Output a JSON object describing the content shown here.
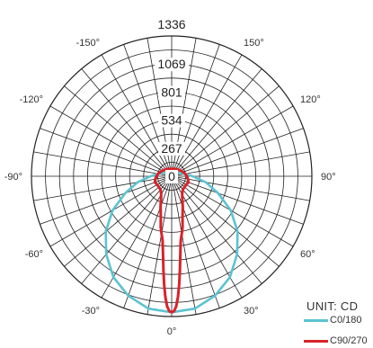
{
  "chart_data": {
    "type": "polar",
    "unit_label": "UNIT: CD",
    "radial_ticks": [
      1336,
      1069,
      801,
      534,
      267,
      0
    ],
    "rmax": 1336,
    "angle_labels": [
      {
        "label": "0°",
        "angle": 0
      },
      {
        "label": "30°",
        "angle": 30
      },
      {
        "label": "60°",
        "angle": 60
      },
      {
        "label": "90°",
        "angle": 90
      },
      {
        "label": "120°",
        "angle": 120
      },
      {
        "label": "150°",
        "angle": 150
      },
      {
        "label": "-150°",
        "angle": -150
      },
      {
        "label": "-120°",
        "angle": -120
      },
      {
        "label": "-90°",
        "angle": -90
      },
      {
        "label": "-60°",
        "angle": -60
      },
      {
        "label": "-30°",
        "angle": -30
      }
    ],
    "series": [
      {
        "name": "C0/180",
        "color": "#5bc3d1",
        "points": [
          [
            0,
            1296
          ],
          [
            10,
            1280
          ],
          [
            20,
            1210
          ],
          [
            30,
            1110
          ],
          [
            40,
            970
          ],
          [
            50,
            820
          ],
          [
            60,
            650
          ],
          [
            70,
            470
          ],
          [
            80,
            330
          ],
          [
            90,
            200
          ],
          [
            100,
            130
          ],
          [
            120,
            70
          ],
          [
            150,
            40
          ],
          [
            180,
            30
          ]
        ]
      },
      {
        "name": "C90/270",
        "color": "#d8232a",
        "points": [
          [
            0,
            1296
          ],
          [
            1,
            1285
          ],
          [
            2,
            1240
          ],
          [
            3,
            1150
          ],
          [
            4,
            1030
          ],
          [
            5,
            900
          ],
          [
            6,
            780
          ],
          [
            7,
            690
          ],
          [
            8,
            620
          ],
          [
            10,
            555
          ],
          [
            12,
            500
          ],
          [
            15,
            400
          ],
          [
            20,
            310
          ],
          [
            25,
            240
          ],
          [
            30,
            200
          ],
          [
            40,
            165
          ],
          [
            50,
            160
          ],
          [
            60,
            160
          ],
          [
            70,
            170
          ],
          [
            80,
            158
          ],
          [
            90,
            145
          ],
          [
            100,
            132
          ],
          [
            120,
            105
          ],
          [
            150,
            80
          ],
          [
            180,
            70
          ]
        ]
      }
    ]
  }
}
